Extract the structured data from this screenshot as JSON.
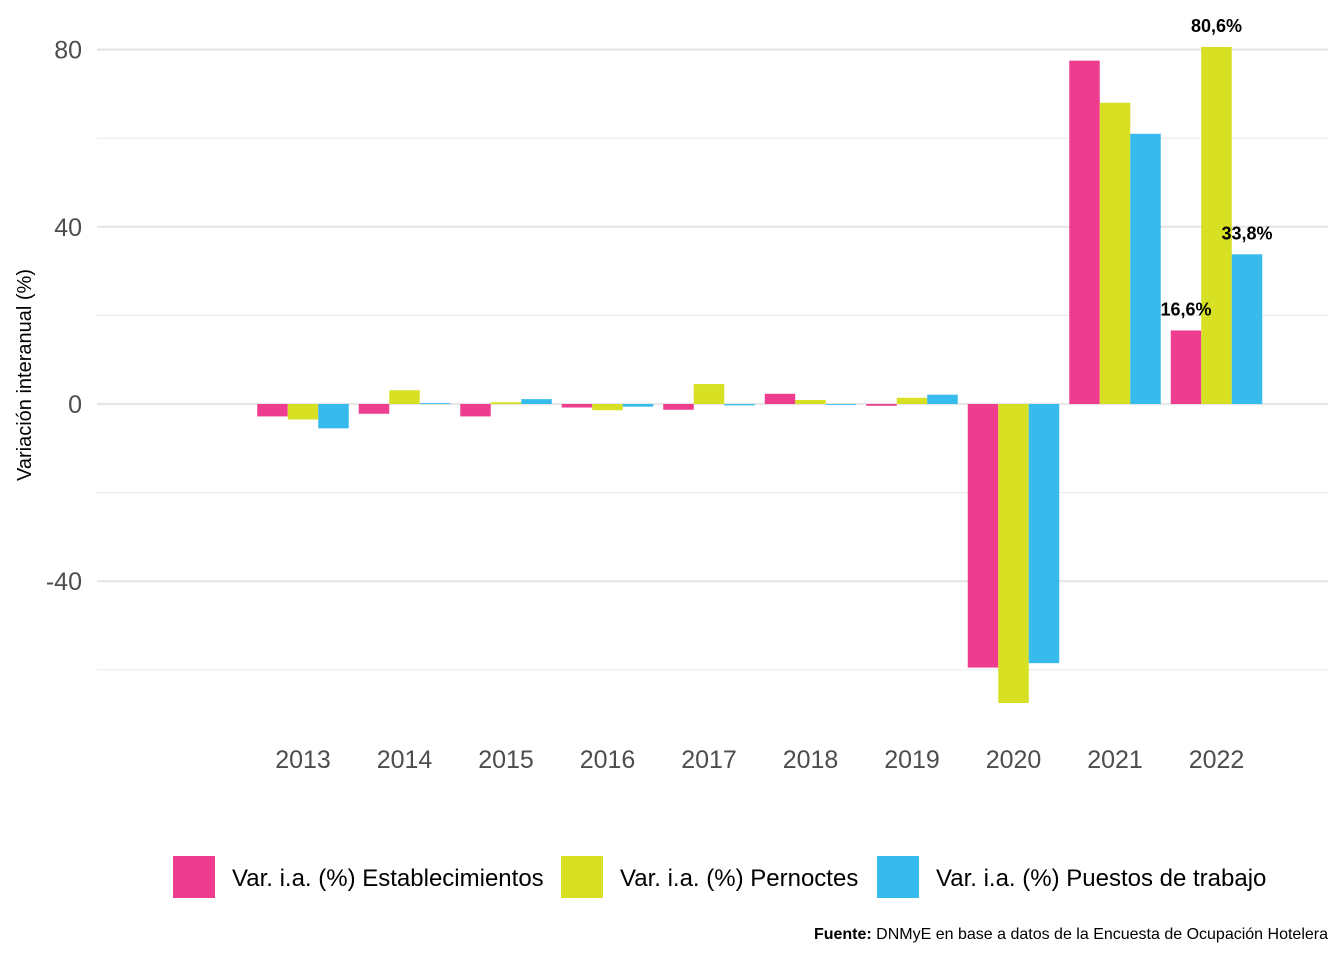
{
  "chart_data": {
    "type": "bar",
    "ylabel": "Variación interanual (%)",
    "xlabel": "",
    "ylim": [
      -68,
      80
    ],
    "yticks": [
      -40,
      0,
      40,
      80
    ],
    "grid": true,
    "legend_position": "bottom",
    "categories": [
      "2013",
      "2014",
      "2015",
      "2016",
      "2017",
      "2018",
      "2019",
      "2020",
      "2021",
      "2022"
    ],
    "series": [
      {
        "name": "Var. i.a. (%) Establecimientos",
        "color": "#EE3D8F",
        "values": [
          -2.8,
          -2.2,
          -2.8,
          -0.8,
          -1.3,
          2.3,
          -0.4,
          -59.5,
          77.5,
          16.6
        ]
      },
      {
        "name": "Var. i.a. (%) Pernoctes",
        "color": "#D7E022",
        "values": [
          -3.5,
          3.1,
          0.4,
          -1.4,
          4.5,
          0.9,
          1.4,
          -67.5,
          68.0,
          80.6
        ]
      },
      {
        "name": "Var. i.a. (%) Puestos de trabajo",
        "color": "#37BBED",
        "values": [
          -5.5,
          0.2,
          1.1,
          -0.6,
          -0.3,
          -0.2,
          2.1,
          -58.5,
          61.0,
          33.8
        ]
      }
    ],
    "data_labels": [
      {
        "category": "2022",
        "series": 0,
        "text": "16,6%"
      },
      {
        "category": "2022",
        "series": 1,
        "text": "80,6%"
      },
      {
        "category": "2022",
        "series": 2,
        "text": "33,8%"
      }
    ]
  },
  "source": {
    "label": "Fuente:",
    "text": " DNMyE en base a datos de la Encuesta de Ocupación Hotelera"
  }
}
